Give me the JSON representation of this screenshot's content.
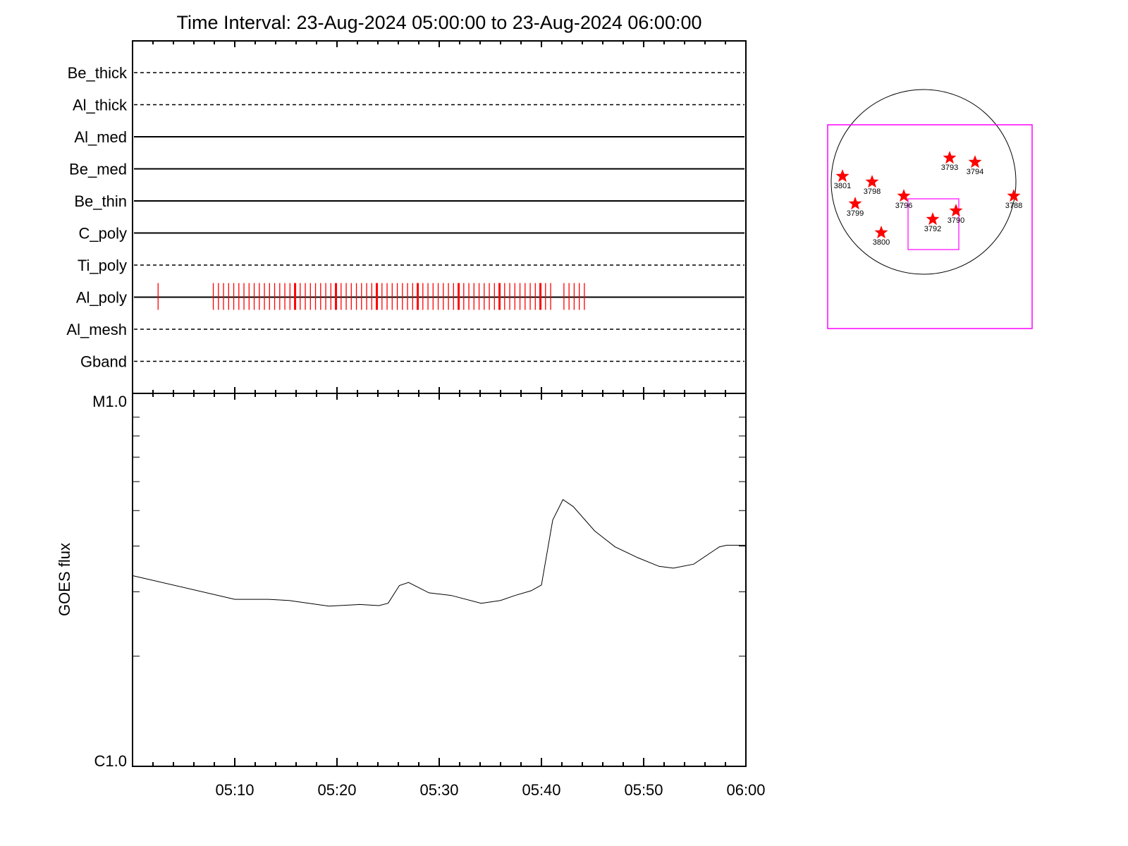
{
  "chart_data": [
    {
      "type": "event-timeline",
      "title": "Time Interval: 23-Aug-2024 05:00:00 to 23-Aug-2024 06:00:00",
      "x_unit": "minutes after 05:00",
      "xlim": [
        0,
        60
      ],
      "channels": [
        {
          "name": "Be_thick",
          "style": "dashed"
        },
        {
          "name": "Al_thick",
          "style": "dashed"
        },
        {
          "name": "Al_med",
          "style": "solid"
        },
        {
          "name": "Be_med",
          "style": "solid"
        },
        {
          "name": "Be_thin",
          "style": "solid"
        },
        {
          "name": "C_poly",
          "style": "solid"
        },
        {
          "name": "Ti_poly",
          "style": "dashed"
        },
        {
          "name": "Al_poly",
          "style": "solid"
        },
        {
          "name": "Al_mesh",
          "style": "dashed"
        },
        {
          "name": "Gband",
          "style": "dashed"
        }
      ],
      "events": {
        "channel": "Al_poly",
        "color": "#ff0000",
        "times_single": [
          2.5
        ],
        "series_start": 7.9,
        "series_end": 41.2,
        "series_step": 0.5,
        "late_times": [
          42.2,
          42.7,
          43.2,
          43.7,
          44.2
        ],
        "emphasis_every": 8
      }
    },
    {
      "type": "line",
      "ylabel": "GOES flux",
      "yscale": "log",
      "ylim": [
        1e-06,
        1e-05
      ],
      "ytick_labels": [
        "C1.0",
        "M1.0"
      ],
      "xtick_labels": [
        "05:10",
        "05:20",
        "05:30",
        "05:40",
        "05:50",
        "06:00"
      ],
      "xtick_values": [
        10,
        20,
        30,
        40,
        50,
        60
      ],
      "x": [
        0,
        10,
        13.2,
        15.3,
        19.2,
        22.2,
        24.1,
        25.0,
        26.1,
        27.0,
        29.0,
        31.2,
        34.1,
        36.0,
        37.4,
        39.0,
        40.0,
        41.1,
        42.1,
        43.1,
        45.2,
        47.2,
        49.4,
        51.5,
        52.9,
        54.9,
        57.4,
        58.1,
        60
      ],
      "y": [
        3.32e-06,
        2.86e-06,
        2.86e-06,
        2.84e-06,
        2.74e-06,
        2.77e-06,
        2.75e-06,
        2.79e-06,
        3.12e-06,
        3.18e-06,
        2.98e-06,
        2.93e-06,
        2.79e-06,
        2.84e-06,
        2.93e-06,
        3.02e-06,
        3.13e-06,
        4.71e-06,
        5.36e-06,
        5.13e-06,
        4.4e-06,
        3.98e-06,
        3.72e-06,
        3.52e-06,
        3.48e-06,
        3.57e-06,
        3.98e-06,
        4.02e-06,
        4.02e-06
      ]
    },
    {
      "type": "map",
      "regions": [
        "3793",
        "3794",
        "3801",
        "3798",
        "3788",
        "3796",
        "3799",
        "3790",
        "3792",
        "3800"
      ],
      "marker_color": "#ff0000",
      "box_color": "#ff00ff"
    }
  ]
}
